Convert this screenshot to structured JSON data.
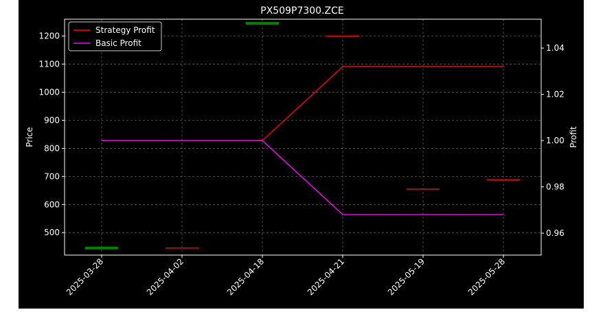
{
  "chart_data": {
    "type": "line",
    "title": "PX509P7300.ZCE",
    "xlabel": "",
    "ylabel_left": "Price",
    "ylabel_right": "Profit",
    "categories": [
      "2025-03-28",
      "2025-04-02",
      "2025-04-18",
      "2025-04-21",
      "2025-05-19",
      "2025-05-28"
    ],
    "left_axis": {
      "ylim": [
        420,
        1260
      ],
      "ticks": [
        500,
        600,
        700,
        800,
        900,
        1000,
        1100,
        1200
      ]
    },
    "right_axis": {
      "ylim": [
        0.9505,
        1.0525
      ],
      "ticks": [
        "0.96",
        "0.98",
        "1.00",
        "1.02",
        "1.04"
      ],
      "tick_values": [
        0.96,
        0.98,
        1.0,
        1.02,
        1.04
      ]
    },
    "grid": true,
    "legend": {
      "position": "top-left"
    },
    "series": [
      {
        "name": "Strategy Profit",
        "color": "#ff0000",
        "axis": "right",
        "values": [
          1.0,
          1.0,
          1.0,
          1.032,
          1.032,
          1.032
        ]
      },
      {
        "name": "Basic Profit",
        "color": "#ff00ff",
        "axis": "right",
        "values": [
          1.0,
          1.0,
          1.0,
          0.968,
          0.968,
          0.968
        ]
      }
    ],
    "price_marks": [
      {
        "date": "2025-03-28",
        "value": 445,
        "color": "#008000"
      },
      {
        "date": "2025-04-02",
        "value": 445,
        "color": "#ff0000"
      },
      {
        "date": "2025-04-18",
        "value": 1245,
        "color": "#008000"
      },
      {
        "date": "2025-04-21",
        "value": 1200,
        "color": "#ff0000"
      },
      {
        "date": "2025-05-19",
        "value": 655,
        "color": "#ff0000"
      },
      {
        "date": "2025-05-28",
        "value": 688,
        "color": "#ff0000"
      }
    ]
  }
}
